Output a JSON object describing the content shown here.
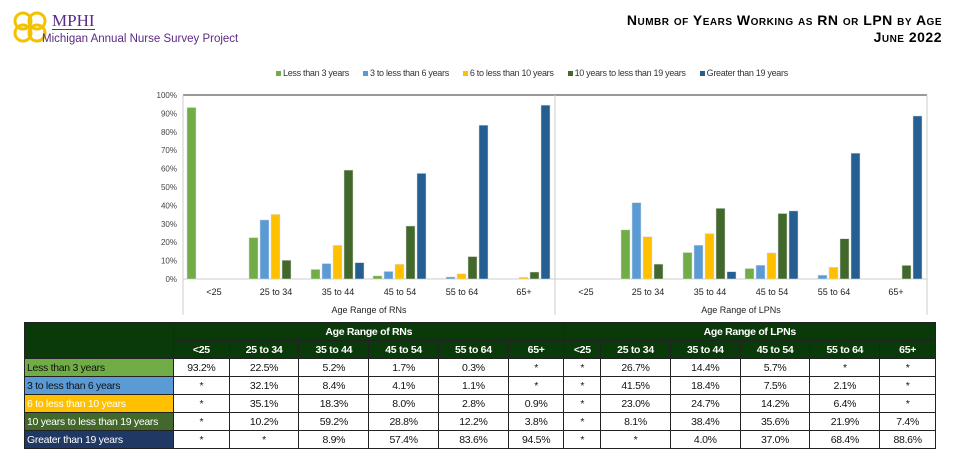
{
  "logo": {
    "name": "MPHI",
    "subtitle": "Michigan Annual Nurse Survey Project"
  },
  "title": {
    "line1": "Numbr of Years Working as RN or LPN  by Age",
    "line2": "June 2022"
  },
  "colors": {
    "Less than 3 years": "#70ad47",
    "3 to less than 6 years": "#5b9bd5",
    "6 to less than 10 years": "#ffc000",
    "10 years to less than 19 years": "#43682b",
    "Greater than 19 years": "#255e91",
    "table_header": "#0a3a0a"
  },
  "chart_data": {
    "type": "bar",
    "ylim": [
      0,
      100
    ],
    "yticks": [
      "0%",
      "10%",
      "20%",
      "30%",
      "40%",
      "50%",
      "60%",
      "70%",
      "80%",
      "90%",
      "100%"
    ],
    "legend_placement": "top",
    "categories": [
      "<25",
      "25 to 34",
      "35 to 44",
      "45 to 54",
      "55 to 64",
      "65+"
    ],
    "series_names": [
      "Less than 3 years",
      "3 to less than 6 years",
      "6 to less than 10 years",
      "10 years to less than 19 years",
      "Greater than 19 years"
    ],
    "panels": [
      {
        "xlabel": "Age Range of RNs",
        "series": [
          {
            "name": "Less than 3 years",
            "values": [
              93.2,
              22.5,
              5.2,
              1.7,
              0.3,
              null
            ]
          },
          {
            "name": "3 to less than 6 years",
            "values": [
              null,
              32.1,
              8.4,
              4.1,
              1.1,
              null
            ]
          },
          {
            "name": "6 to less than 10 years",
            "values": [
              null,
              35.1,
              18.3,
              8.0,
              2.8,
              0.9
            ]
          },
          {
            "name": "10 years to less than 19 years",
            "values": [
              null,
              10.2,
              59.2,
              28.8,
              12.2,
              3.8
            ]
          },
          {
            "name": "Greater than 19 years",
            "values": [
              null,
              null,
              8.9,
              57.4,
              83.6,
              94.5
            ]
          }
        ]
      },
      {
        "xlabel": "Age Range of LPNs",
        "series": [
          {
            "name": "Less than 3 years",
            "values": [
              null,
              26.7,
              14.4,
              5.7,
              null,
              null
            ]
          },
          {
            "name": "3 to less than 6 years",
            "values": [
              null,
              41.5,
              18.4,
              7.5,
              2.1,
              null
            ]
          },
          {
            "name": "6 to less than 10 years",
            "values": [
              null,
              23.0,
              24.7,
              14.2,
              6.4,
              null
            ]
          },
          {
            "name": "10 years to less than 19 years",
            "values": [
              null,
              8.1,
              38.4,
              35.6,
              21.9,
              7.4
            ]
          },
          {
            "name": "Greater than 19 years",
            "values": [
              null,
              null,
              4.0,
              37.0,
              68.4,
              88.6
            ]
          }
        ]
      }
    ]
  },
  "table": {
    "group_headers": [
      "Age Range of RNs",
      "Age Range of LPNs"
    ],
    "columns": [
      "<25",
      "25 to 34",
      "35 to 44",
      "45 to 54",
      "55 to 64",
      "65+",
      "<25",
      "25 to 34",
      "35 to 44",
      "45 to 54",
      "55 to 64",
      "65+"
    ],
    "rows": [
      {
        "label": "Less than 3 years",
        "bg": "#70ad47",
        "fg": "#111",
        "cells": [
          "93.2%",
          "22.5%",
          "5.2%",
          "1.7%",
          "0.3%",
          "*",
          "*",
          "26.7%",
          "14.4%",
          "5.7%",
          "*",
          "*"
        ]
      },
      {
        "label": "3 to less than 6 years",
        "bg": "#5b9bd5",
        "fg": "#111",
        "cells": [
          "*",
          "32.1%",
          "8.4%",
          "4.1%",
          "1.1%",
          "*",
          "*",
          "41.5%",
          "18.4%",
          "7.5%",
          "2.1%",
          "*"
        ]
      },
      {
        "label": "6 to less than 10 years",
        "bg": "#ffc000",
        "fg": "#fff",
        "cells": [
          "*",
          "35.1%",
          "18.3%",
          "8.0%",
          "2.8%",
          "0.9%",
          "*",
          "23.0%",
          "24.7%",
          "14.2%",
          "6.4%",
          "*"
        ]
      },
      {
        "label": "10 years to less than 19 years",
        "bg": "#43682b",
        "fg": "#fff",
        "cells": [
          "*",
          "10.2%",
          "59.2%",
          "28.8%",
          "12.2%",
          "3.8%",
          "*",
          "8.1%",
          "38.4%",
          "35.6%",
          "21.9%",
          "7.4%"
        ]
      },
      {
        "label": "Greater than 19 years",
        "bg": "#203864",
        "fg": "#fff",
        "cells": [
          "*",
          "*",
          "8.9%",
          "57.4%",
          "83.6%",
          "94.5%",
          "*",
          "*",
          "4.0%",
          "37.0%",
          "68.4%",
          "88.6%"
        ]
      }
    ]
  }
}
